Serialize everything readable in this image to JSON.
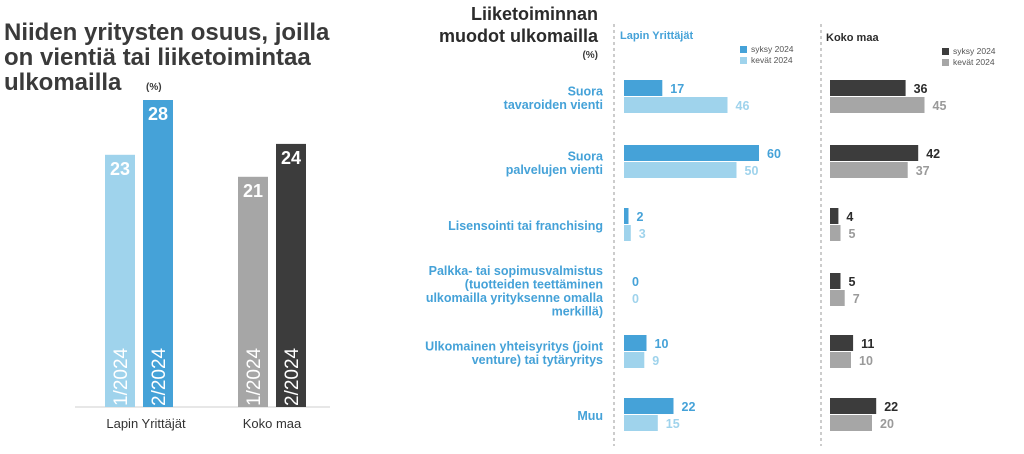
{
  "left": {
    "title_lines": [
      "Niiden yritysten osuus, joilla",
      "on vientiä tai liiketoimintaa",
      "ulkomailla"
    ],
    "unit": "(%)"
  },
  "right": {
    "title_lines": [
      "Liiketoiminnan",
      "muodot ulkomailla"
    ],
    "unit": "(%)",
    "panel_lapin": "Lapin Yrittäjät",
    "panel_koko": "Koko maa"
  },
  "colors": {
    "lapin_dark": "#45a2d8",
    "lapin_light": "#9fd3ec",
    "koko_dark": "#3c3c3c",
    "koko_light": "#a6a6a6"
  },
  "chart_data": [
    {
      "type": "bar",
      "title": "Niiden yritysten osuus, joilla on vientiä tai liiketoimintaa ulkomailla (%)",
      "groups": [
        {
          "name": "Lapin Yrittäjät",
          "bars": [
            {
              "period": "1/2024",
              "value": 23
            },
            {
              "period": "2/2024",
              "value": 28
            }
          ]
        },
        {
          "name": "Koko maa",
          "bars": [
            {
              "period": "1/2024",
              "value": 21
            },
            {
              "period": "2/2024",
              "value": 24
            }
          ]
        }
      ],
      "ylim": [
        0,
        30
      ]
    },
    {
      "type": "bar",
      "orientation": "horizontal",
      "title": "Liiketoiminnan muodot ulkomailla (%)",
      "categories": [
        [
          "Suora",
          "tavaroiden vienti"
        ],
        [
          "Suora",
          "palvelujen vienti"
        ],
        [
          "Lisensointi tai franchising"
        ],
        [
          "Palkka- tai sopimusvalmistus",
          "(tuotteiden teettäminen",
          "ulkomailla yrityksenne omalla",
          "merkillä)"
        ],
        [
          "Ulkomainen yhteisyritys (joint",
          "venture) tai tytäryritys"
        ],
        [
          "Muu"
        ]
      ],
      "panels": [
        {
          "name": "Lapin Yrittäjät",
          "series": [
            {
              "name": "syksy 2024",
              "values": [
                17,
                60,
                2,
                0,
                10,
                22
              ]
            },
            {
              "name": "kevät 2024",
              "values": [
                46,
                50,
                3,
                0,
                9,
                15
              ]
            }
          ]
        },
        {
          "name": "Koko maa",
          "series": [
            {
              "name": "syksy 2024",
              "values": [
                36,
                42,
                4,
                5,
                11,
                22
              ]
            },
            {
              "name": "kevät 2024",
              "values": [
                45,
                37,
                5,
                7,
                10,
                20
              ]
            }
          ]
        }
      ]
    }
  ]
}
